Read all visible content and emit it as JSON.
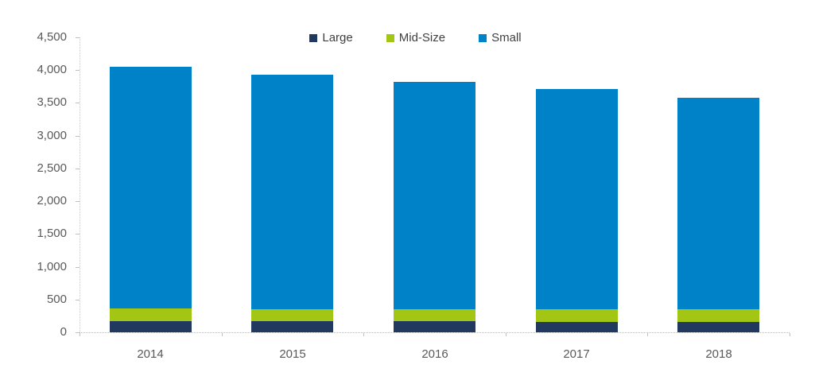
{
  "chart_data": {
    "type": "bar",
    "stacked": true,
    "title": "",
    "categories": [
      "2014",
      "2015",
      "2016",
      "2017",
      "2018"
    ],
    "series": [
      {
        "name": "Large",
        "color": "#21395f",
        "values": [
          175,
          165,
          165,
          160,
          160
        ]
      },
      {
        "name": "Mid-Size",
        "color": "#a3c514",
        "values": [
          190,
          190,
          190,
          195,
          190
        ]
      },
      {
        "name": "Small",
        "color": "#0082c9",
        "values": [
          3685,
          3580,
          3465,
          3355,
          3230
        ]
      }
    ],
    "totals": [
      4050,
      3935,
      3820,
      3710,
      3580
    ],
    "ylim": [
      0,
      4500
    ],
    "y_tick_step": 500,
    "y_tick_labels": [
      "0",
      "500",
      "1,000",
      "1,500",
      "2,000",
      "2,500",
      "3,000",
      "3,500",
      "4,000",
      "4,500"
    ],
    "legend_position": "top-center",
    "grid": "none",
    "colors": {
      "axis_line": "#c6c6c6",
      "tick_mark": "#bfbfbf",
      "axis_label": "#595959",
      "legend_text": "#404040",
      "background": "#ffffff"
    }
  }
}
